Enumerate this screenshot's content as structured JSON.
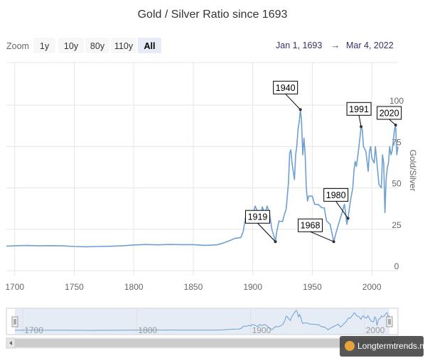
{
  "chart_data": {
    "type": "line",
    "title": "Gold / Silver Ratio since 1693",
    "ylabel": "Gold/Silver",
    "xlim": [
      1693,
      2022
    ],
    "ylim": [
      0,
      100
    ],
    "x_ticks": [
      "1700",
      "1750",
      "1800",
      "1850",
      "1900",
      "1950",
      "2000"
    ],
    "y_ticks": [
      "0",
      "25",
      "50",
      "75",
      "100"
    ],
    "grid": true,
    "series": [
      {
        "color": "#6f9fd0",
        "points": [
          [
            1693,
            14.8
          ],
          [
            1700,
            15.0
          ],
          [
            1710,
            15.2
          ],
          [
            1720,
            15.0
          ],
          [
            1730,
            15.1
          ],
          [
            1740,
            15.0
          ],
          [
            1750,
            14.6
          ],
          [
            1760,
            14.4
          ],
          [
            1770,
            14.6
          ],
          [
            1780,
            14.7
          ],
          [
            1790,
            15.0
          ],
          [
            1800,
            15.5
          ],
          [
            1810,
            15.8
          ],
          [
            1820,
            15.6
          ],
          [
            1830,
            15.8
          ],
          [
            1840,
            15.7
          ],
          [
            1850,
            15.7
          ],
          [
            1860,
            15.3
          ],
          [
            1870,
            15.6
          ],
          [
            1875,
            16.6
          ],
          [
            1880,
            18.0
          ],
          [
            1885,
            19.5
          ],
          [
            1890,
            20.0
          ],
          [
            1892,
            23.7
          ],
          [
            1894,
            32.6
          ],
          [
            1896,
            30.6
          ],
          [
            1898,
            35.0
          ],
          [
            1900,
            33.0
          ],
          [
            1902,
            39.0
          ],
          [
            1904,
            35.7
          ],
          [
            1906,
            30.0
          ],
          [
            1908,
            38.6
          ],
          [
            1910,
            34.0
          ],
          [
            1912,
            39.0
          ],
          [
            1914,
            35.0
          ],
          [
            1916,
            25.0
          ],
          [
            1918,
            20.4
          ],
          [
            1919,
            17.5
          ],
          [
            1920,
            23.0
          ],
          [
            1922,
            30.0
          ],
          [
            1925,
            29.6
          ],
          [
            1927,
            35.0
          ],
          [
            1928,
            37.0
          ],
          [
            1930,
            53.0
          ],
          [
            1931,
            71.0
          ],
          [
            1932,
            73.0
          ],
          [
            1933,
            65.0
          ],
          [
            1935,
            55.0
          ],
          [
            1936,
            70.0
          ],
          [
            1937,
            75.0
          ],
          [
            1938,
            85.0
          ],
          [
            1939,
            90.0
          ],
          [
            1940,
            97.3
          ],
          [
            1941,
            90.0
          ],
          [
            1942,
            70.0
          ],
          [
            1943,
            80.0
          ],
          [
            1944,
            70.0
          ],
          [
            1945,
            50.0
          ],
          [
            1946,
            42.0
          ],
          [
            1947,
            45.0
          ],
          [
            1950,
            45.0
          ],
          [
            1952,
            40.0
          ],
          [
            1955,
            40.0
          ],
          [
            1958,
            38.0
          ],
          [
            1960,
            38.0
          ],
          [
            1962,
            30.0
          ],
          [
            1965,
            28.0
          ],
          [
            1968,
            17.5
          ],
          [
            1970,
            23.0
          ],
          [
            1972,
            28.0
          ],
          [
            1975,
            35.0
          ],
          [
            1977,
            40.0
          ],
          [
            1978,
            35.0
          ],
          [
            1979,
            28.0
          ],
          [
            1980,
            31.6
          ],
          [
            1982,
            42.0
          ],
          [
            1984,
            50.0
          ],
          [
            1985,
            60.0
          ],
          [
            1986,
            66.0
          ],
          [
            1987,
            63.0
          ],
          [
            1988,
            68.0
          ],
          [
            1990,
            80.0
          ],
          [
            1991,
            87.0
          ],
          [
            1992,
            85.0
          ],
          [
            1993,
            75.0
          ],
          [
            1995,
            72.0
          ],
          [
            1997,
            60.0
          ],
          [
            1998,
            72.0
          ],
          [
            1999,
            75.0
          ],
          [
            2000,
            68.0
          ],
          [
            2002,
            65.0
          ],
          [
            2003,
            75.0
          ],
          [
            2005,
            60.0
          ],
          [
            2006,
            52.0
          ],
          [
            2008,
            50.0
          ],
          [
            2009,
            70.0
          ],
          [
            2010,
            65.0
          ],
          [
            2011,
            35.0
          ],
          [
            2012,
            55.0
          ],
          [
            2013,
            62.0
          ],
          [
            2014,
            65.0
          ],
          [
            2015,
            75.0
          ],
          [
            2016,
            70.0
          ],
          [
            2017,
            72.0
          ],
          [
            2018,
            78.0
          ],
          [
            2019,
            85.0
          ],
          [
            2020,
            88.0
          ],
          [
            2021,
            70.0
          ],
          [
            2022,
            75.0
          ]
        ]
      }
    ],
    "annotations": [
      {
        "label": "1940",
        "x": 1940,
        "y": 97.3
      },
      {
        "label": "1991",
        "x": 1991,
        "y": 87.0
      },
      {
        "label": "2020",
        "x": 2020,
        "y": 88.0
      },
      {
        "label": "1919",
        "x": 1919,
        "y": 17.5
      },
      {
        "label": "1980",
        "x": 1980,
        "y": 31.6
      },
      {
        "label": "1968",
        "x": 1968,
        "y": 17.5
      }
    ],
    "navigator_ticks": [
      "1700",
      "1800",
      "1900",
      "2000"
    ]
  },
  "toolbar": {
    "zoom_label": "Zoom",
    "buttons": [
      "1y",
      "10y",
      "80y",
      "110y",
      "All"
    ],
    "active": "All",
    "range_from": "Jan 1, 1693",
    "range_sep": "→",
    "range_to": "Mar 4, 2022"
  },
  "watermark": "Longtermtrends.net"
}
